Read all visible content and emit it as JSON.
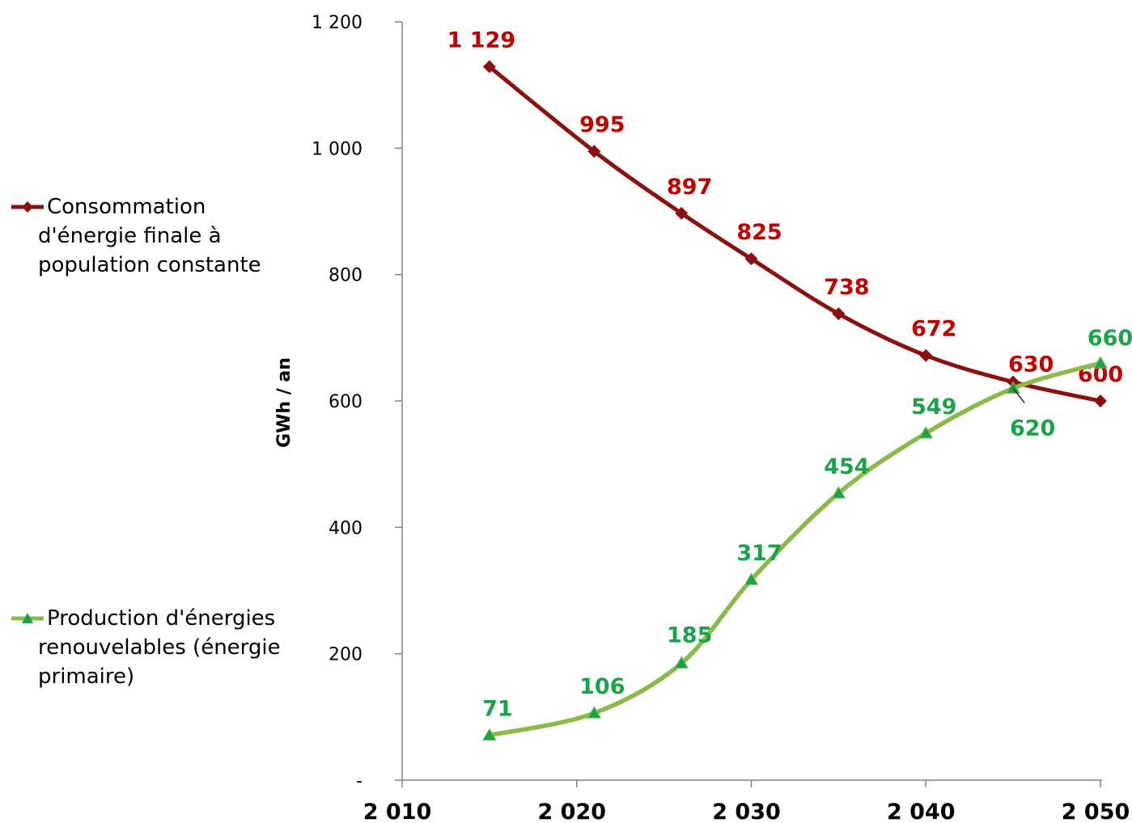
{
  "chart_data": {
    "type": "line",
    "title": "",
    "xlabel": "",
    "ylabel": "GWh / an",
    "xlim": [
      2010,
      2050
    ],
    "ylim": [
      0,
      1200
    ],
    "x_ticks": [
      2010,
      2020,
      2030,
      2040,
      2050
    ],
    "x_tick_labels": [
      "2 010",
      "2 020",
      "2 030",
      "2 040",
      "2 050"
    ],
    "y_ticks": [
      0,
      200,
      400,
      600,
      800,
      1000,
      1200
    ],
    "y_tick_labels": [
      "-",
      "200",
      "400",
      "600",
      "800",
      "1 000",
      "1 200"
    ],
    "grid": false,
    "legend_position": "left",
    "series": [
      {
        "name": "Consommation d'énergie finale à population constante",
        "name_lines": [
          "Consommation",
          "d'énergie finale  à",
          "population constante"
        ],
        "color": "#8b1010",
        "label_color": "#c00000",
        "marker": "diamond",
        "x": [
          2015,
          2021,
          2026,
          2030,
          2035,
          2040,
          2045,
          2050
        ],
        "values": [
          1129,
          995,
          897,
          825,
          738,
          672,
          630,
          600
        ],
        "data_labels": [
          "1 129",
          "995",
          "897",
          "825",
          "738",
          "672",
          "630",
          "600"
        ]
      },
      {
        "name": "Production d'énergies renouvelables (énergie primaire)",
        "name_lines": [
          "Production d'énergies",
          "renouvelables (énergie",
          "primaire)"
        ],
        "color": "#8db84a",
        "marker_color": "#1aa34a",
        "label_color": "#1aa34a",
        "marker": "triangle",
        "x": [
          2015,
          2021,
          2026,
          2030,
          2035,
          2040,
          2045,
          2050
        ],
        "values": [
          71,
          106,
          185,
          317,
          454,
          549,
          620,
          660
        ],
        "data_labels": [
          "71",
          "106",
          "185",
          "317",
          "454",
          "549",
          "620",
          "660"
        ]
      }
    ]
  }
}
